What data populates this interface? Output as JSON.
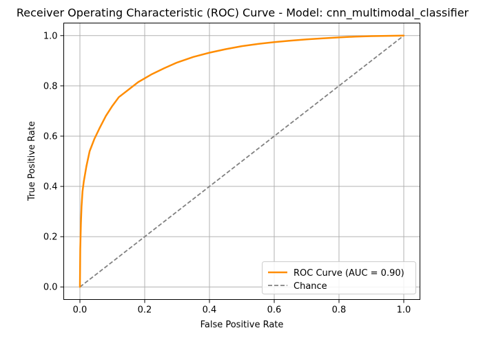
{
  "chart_data": {
    "type": "line",
    "title": "Receiver Operating Characteristic (ROC) Curve - Model: cnn_multimodal_classifier",
    "xlabel": "False Positive Rate",
    "ylabel": "True Positive Rate",
    "xlim": [
      -0.05,
      1.05
    ],
    "ylim": [
      -0.05,
      1.05
    ],
    "xticks": [
      0.0,
      0.2,
      0.4,
      0.6,
      0.8,
      1.0
    ],
    "yticks": [
      0.0,
      0.2,
      0.4,
      0.6,
      0.8,
      1.0
    ],
    "xtick_labels": [
      "0.0",
      "0.2",
      "0.4",
      "0.6",
      "0.8",
      "1.0"
    ],
    "ytick_labels": [
      "0.0",
      "0.2",
      "0.4",
      "0.6",
      "0.8",
      "1.0"
    ],
    "grid": true,
    "legend_position": "lower-right",
    "series": [
      {
        "name": "ROC Curve (AUC = 0.90)",
        "color": "#ff8c00",
        "style": "solid",
        "x": [
          0.0,
          0.001,
          0.003,
          0.005,
          0.008,
          0.012,
          0.02,
          0.03,
          0.045,
          0.06,
          0.08,
          0.1,
          0.12,
          0.15,
          0.18,
          0.22,
          0.26,
          0.3,
          0.35,
          0.4,
          0.45,
          0.5,
          0.55,
          0.6,
          0.65,
          0.7,
          0.75,
          0.8,
          0.85,
          0.9,
          0.95,
          1.0
        ],
        "y": [
          0.0,
          0.15,
          0.25,
          0.32,
          0.38,
          0.42,
          0.48,
          0.54,
          0.59,
          0.63,
          0.68,
          0.72,
          0.755,
          0.785,
          0.815,
          0.845,
          0.87,
          0.893,
          0.915,
          0.932,
          0.946,
          0.958,
          0.967,
          0.974,
          0.98,
          0.985,
          0.989,
          0.993,
          0.996,
          0.998,
          0.999,
          1.0
        ]
      },
      {
        "name": "Chance",
        "color": "#808080",
        "style": "dashed",
        "x": [
          0.0,
          1.0
        ],
        "y": [
          0.0,
          1.0
        ]
      }
    ]
  }
}
